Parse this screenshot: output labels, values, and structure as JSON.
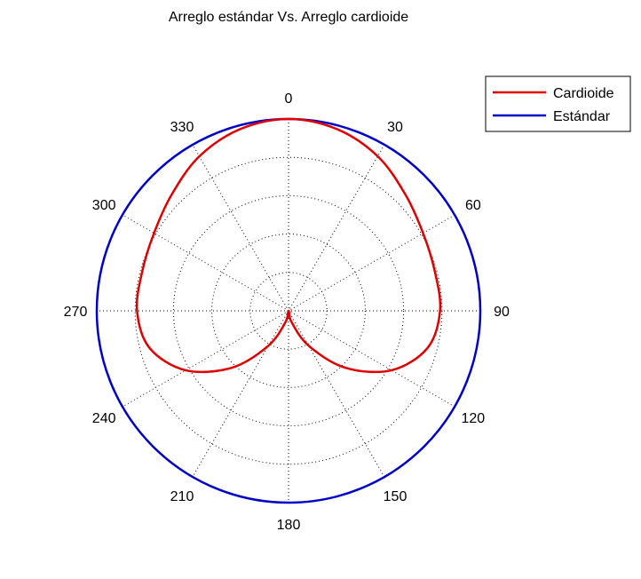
{
  "chart_data": {
    "type": "polar",
    "title": "Arreglo estándar Vs. Arreglo cardioide",
    "angle_ticks": [
      "0",
      "30",
      "60",
      "90",
      "120",
      "150",
      "180",
      "210",
      "240",
      "270",
      "300",
      "330"
    ],
    "angle_direction": "clockwise",
    "zero_location": "top",
    "rmax": 1,
    "rings": 5,
    "grid": true,
    "legend": {
      "placement": "top-right"
    },
    "series": [
      {
        "name": "Cardioide",
        "color": "#e00000",
        "theta_deg": [
          0,
          15,
          30,
          45,
          60,
          75,
          90,
          105,
          120,
          135,
          150,
          165,
          180,
          195,
          210,
          225,
          240,
          255,
          270,
          285,
          300,
          315,
          330,
          345,
          360
        ],
        "r": [
          1.0,
          0.98,
          0.93,
          0.86,
          0.81,
          0.79,
          0.79,
          0.75,
          0.62,
          0.42,
          0.21,
          0.06,
          0.0,
          0.06,
          0.21,
          0.42,
          0.62,
          0.75,
          0.79,
          0.79,
          0.81,
          0.86,
          0.93,
          0.98,
          1.0
        ]
      },
      {
        "name": "Estándar",
        "color": "#0000c8",
        "theta_deg": [
          0,
          90,
          180,
          270,
          360
        ],
        "r": [
          1.0,
          1.0,
          1.0,
          1.0,
          1.0
        ]
      }
    ]
  }
}
